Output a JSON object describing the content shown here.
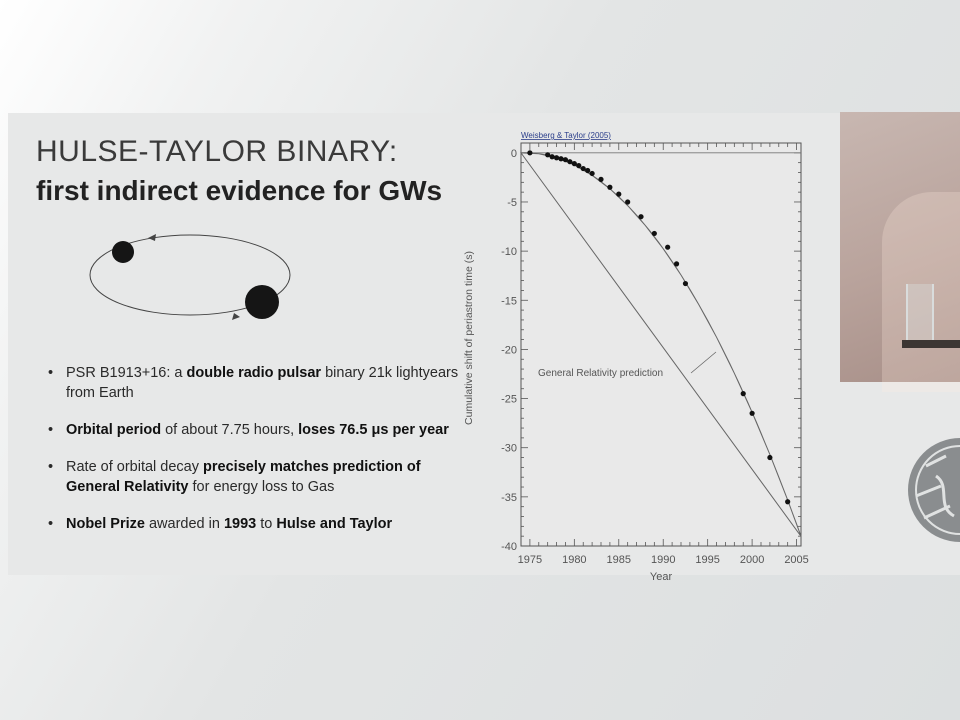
{
  "slide": {
    "title_line1": "HULSE-TAYLOR BINARY:",
    "title_line2": "first indirect evidence for GWs"
  },
  "bullets": [
    {
      "parts": [
        {
          "t": "PSR B1913+16: a ",
          "b": false
        },
        {
          "t": "double radio pulsar",
          "b": true
        },
        {
          "t": " binary 21k lightyears from Earth",
          "b": false
        }
      ]
    },
    {
      "parts": [
        {
          "t": "Orbital period",
          "b": true
        },
        {
          "t": " of about 7.75 hours, ",
          "b": false
        },
        {
          "t": "loses 76.5 μs per year",
          "b": true
        }
      ]
    },
    {
      "parts": [
        {
          "t": "Rate of orbital decay ",
          "b": false
        },
        {
          "t": "precisely matches prediction of General Relativity",
          "b": true
        },
        {
          "t": " for energy loss to Gas",
          "b": false
        }
      ]
    },
    {
      "parts": [
        {
          "t": "Nobel Prize",
          "b": true
        },
        {
          "t": " awarded in ",
          "b": false
        },
        {
          "t": "1993",
          "b": true
        },
        {
          "t": " to ",
          "b": false
        },
        {
          "t": "Hulse and Taylor",
          "b": true
        }
      ]
    }
  ],
  "chart_data": {
    "type": "scatter",
    "source_label": "Weisberg & Taylor (2005)",
    "xlabel": "Year",
    "ylabel": "Cumulative shift of periastron time (s)",
    "xlim": [
      1974,
      2005.5
    ],
    "ylim": [
      -40,
      1
    ],
    "x_ticks": [
      "1975",
      "1980",
      "1985",
      "1990",
      "1995",
      "2000",
      "2005"
    ],
    "y_ticks": [
      "0",
      "-5",
      "-10",
      "-15",
      "-20",
      "-25",
      "-30",
      "-35",
      "-40"
    ],
    "annotation": "General Relativity prediction",
    "points": [
      [
        1975.0,
        0.0
      ],
      [
        1977.0,
        -0.2
      ],
      [
        1977.5,
        -0.4
      ],
      [
        1978.0,
        -0.5
      ],
      [
        1978.5,
        -0.6
      ],
      [
        1979.0,
        -0.7
      ],
      [
        1979.5,
        -0.9
      ],
      [
        1980.0,
        -1.1
      ],
      [
        1980.5,
        -1.3
      ],
      [
        1981.0,
        -1.6
      ],
      [
        1981.5,
        -1.8
      ],
      [
        1982.0,
        -2.1
      ],
      [
        1983.0,
        -2.7
      ],
      [
        1984.0,
        -3.5
      ],
      [
        1985.0,
        -4.2
      ],
      [
        1986.0,
        -5.0
      ],
      [
        1987.5,
        -6.5
      ],
      [
        1989.0,
        -8.2
      ],
      [
        1990.5,
        -9.6
      ],
      [
        1991.5,
        -11.3
      ],
      [
        1992.5,
        -13.3
      ],
      [
        1999.0,
        -24.5
      ],
      [
        2000.0,
        -26.5
      ],
      [
        2002.0,
        -31.0
      ],
      [
        2004.0,
        -35.5
      ]
    ],
    "gr_curve_years": [
      1974,
      1976,
      1978,
      1980,
      1982,
      1984,
      1986,
      1988,
      1990,
      1992,
      1994,
      1996,
      1998,
      2000,
      2002,
      2004,
      2005.5
    ]
  }
}
